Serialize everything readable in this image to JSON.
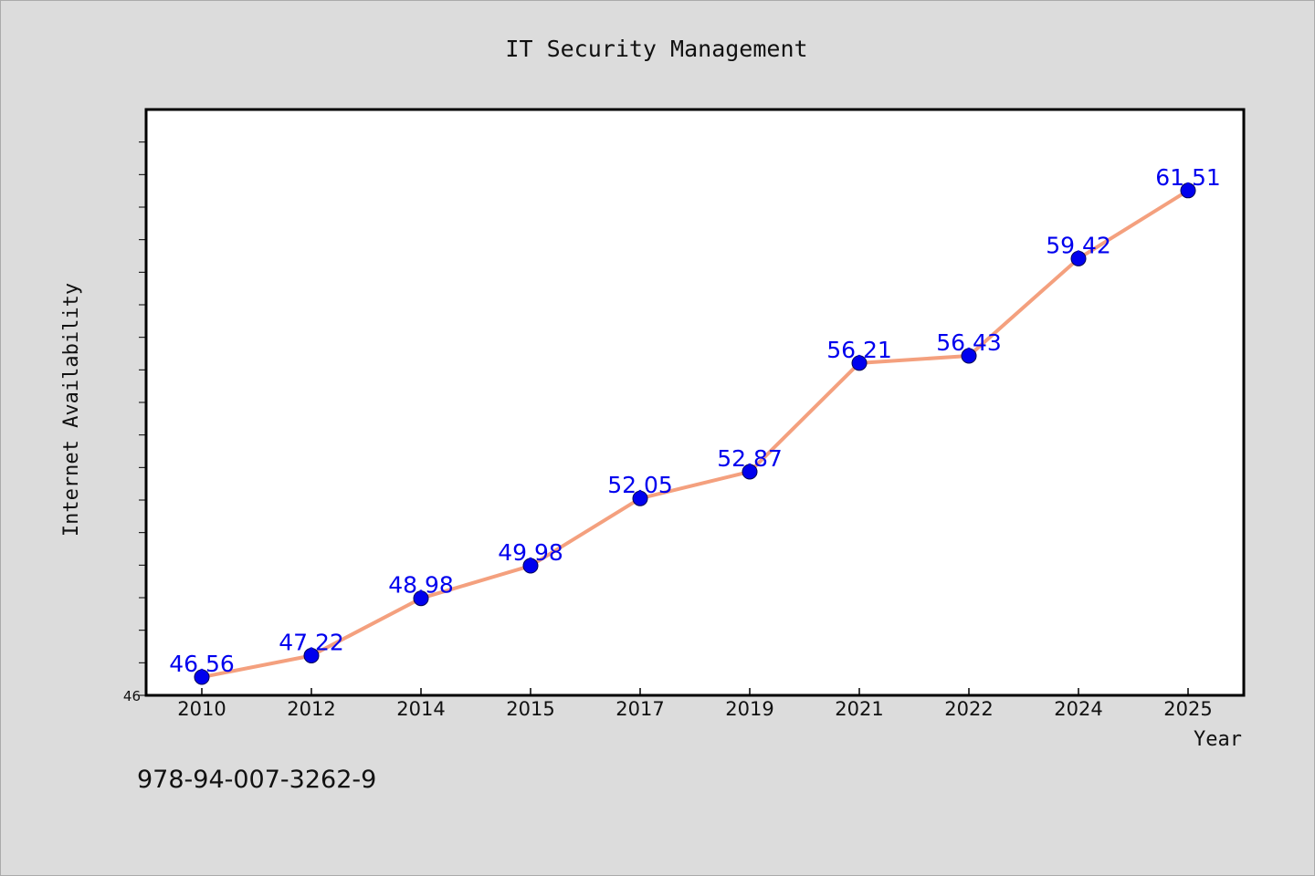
{
  "chart_data": {
    "type": "line",
    "title": "IT Security Management",
    "xlabel": "Year",
    "ylabel": "Internet Availability",
    "categories": [
      "2010",
      "2012",
      "2014",
      "2015",
      "2017",
      "2019",
      "2021",
      "2022",
      "2024",
      "2025"
    ],
    "series": [
      {
        "values": [
          46.56,
          47.22,
          48.98,
          49.98,
          52.05,
          52.87,
          56.21,
          56.43,
          59.42,
          61.51
        ]
      }
    ],
    "data_labels": [
      "46.56",
      "47.22",
      "48.98",
      "49.98",
      "52.05",
      "52.87",
      "56.21",
      "56.43",
      "59.42",
      "61.51"
    ],
    "ylim": [
      46,
      64
    ],
    "yticks_labeled": [
      "46"
    ],
    "grid": false,
    "line_color": "#f4a07e",
    "marker_color": "#0000ee",
    "label_color": "#0000ee"
  },
  "footer": {
    "isbn": "978-94-007-3262-9"
  }
}
